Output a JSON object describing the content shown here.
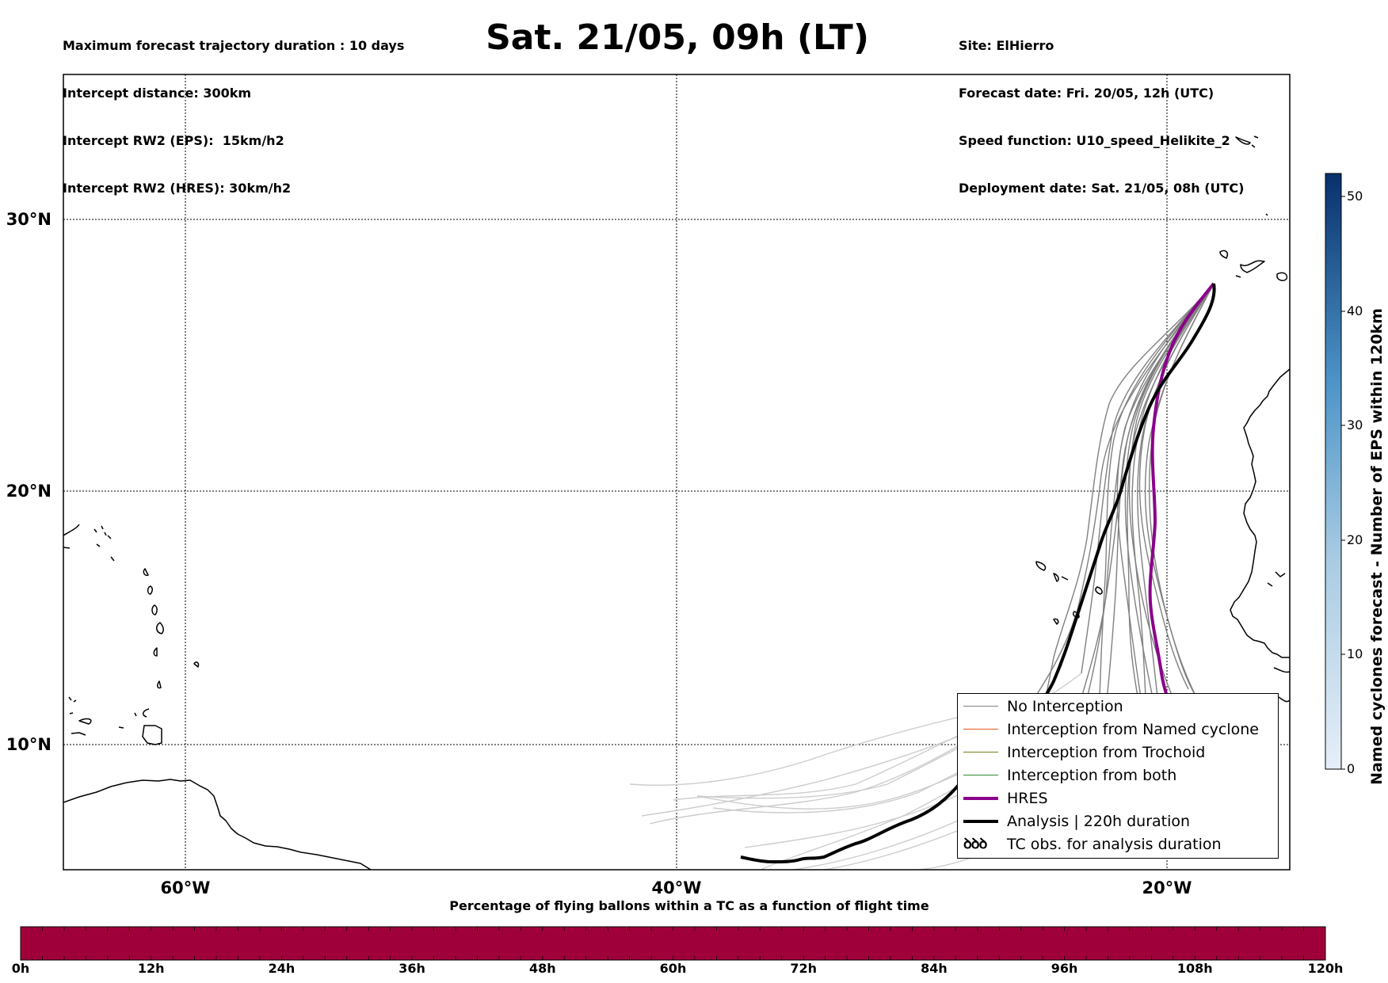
{
  "header": {
    "info_left": [
      "Maximum forecast trajectory duration : 10 days",
      "Intercept distance: 300km",
      "Intercept RW2 (EPS):  15km/h2",
      "Intercept RW2 (HRES): 30km/h2"
    ],
    "title": "Sat. 21/05, 09h (LT)",
    "info_right": [
      "Site: ElHierro",
      "Forecast date: Fri. 20/05, 12h (UTC)",
      "Speed function: U10_speed_Helikite_2",
      "Deployment date: Sat. 21/05, 08h (UTC)"
    ]
  },
  "map": {
    "lat_labels": [
      "30°N",
      "20°N",
      "10°N"
    ],
    "lon_labels": [
      "60°W",
      "40°W",
      "20°W"
    ],
    "colors": {
      "no_interception": "#808080",
      "eps_light": "#cccccc",
      "hres": "#8b008b",
      "analysis": "#000000",
      "coast": "#000000"
    }
  },
  "legend": {
    "items": [
      {
        "label": "No Interception",
        "color": "#808080",
        "style": "thin"
      },
      {
        "label": "Interception from Named cyclone",
        "color": "#e8541c",
        "style": "thin"
      },
      {
        "label": "Interception from Trochoid",
        "color": "#7d7d1c",
        "style": "thin"
      },
      {
        "label": "Interception from both",
        "color": "#2c8a2c",
        "style": "thin"
      },
      {
        "label": "HRES",
        "color": "#8b008b",
        "style": "thick"
      },
      {
        "label": "Analysis | 220h duration",
        "color": "#000000",
        "style": "thick"
      },
      {
        "label": "TC obs. for analysis duration",
        "color": "#000000",
        "style": "symbol",
        "symbol": "ꝺꝺꝺ"
      }
    ]
  },
  "flight_time_bar": {
    "title": "Percentage of flying ballons within a TC as a function of flight time",
    "color": "#a0003a",
    "ticks": [
      "0h",
      "12h",
      "24h",
      "36h",
      "48h",
      "60h",
      "72h",
      "84h",
      "96h",
      "108h",
      "120h"
    ],
    "percent_values": [
      0,
      0,
      0,
      0,
      0,
      0,
      0,
      0,
      0,
      0
    ]
  },
  "eps_count_bar": {
    "label": "Named cyclones forecast - Number of EPS within 120km",
    "ticks": [
      "0",
      "10",
      "20",
      "30",
      "40",
      "50"
    ],
    "range": [
      0,
      52
    ],
    "color_low": "#e6eef8",
    "color_high": "#08306b"
  }
}
